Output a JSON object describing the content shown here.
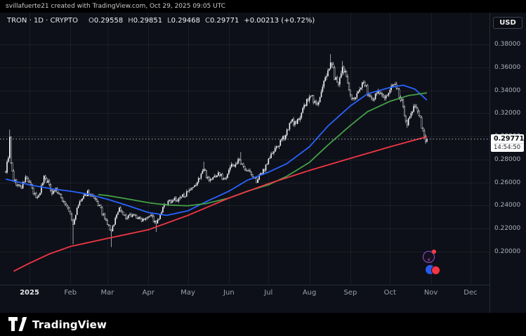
{
  "attribution": {
    "text": "svillafuerte21 created with TradingView.com, Oct 29, 2025 09:05 UTC"
  },
  "legend": {
    "symbol_text": "TRON · 1D · CRYPTO",
    "o_label": "O",
    "o_value": "0.29558",
    "h_label": "H",
    "h_value": "0.29851",
    "l_label": "L",
    "l_value": "0.29468",
    "c_label": "C",
    "c_value": "0.29771",
    "change_text": "+0.00213 (+0.72%)"
  },
  "currency_badge": "USD",
  "price_badge": {
    "price": "0.29771",
    "countdown": "14:54:50"
  },
  "logo": {
    "brand": "TradingView"
  },
  "colors": {
    "page_background": "#000000",
    "chart_background": "#0d1018",
    "axis_text": "#aeb2bc",
    "grid": "rgba(255,255,255,0.06)",
    "ma_fast": "#2962ff",
    "ma_medium": "#43a047",
    "ma_slow": "#f23645"
  },
  "chart_data": {
    "type": "candlestick",
    "symbol": "TRON",
    "interval": "1D",
    "market": "CRYPTO",
    "ylim": [
      0.2,
      0.38
    ],
    "last_price": 0.29771,
    "last_candle": {
      "open": 0.29558,
      "high": 0.29851,
      "low": 0.29468,
      "close": 0.29771
    },
    "days": 320,
    "jan1_index": 18,
    "price_ticks": [
      "0.38000",
      "0.36000",
      "0.34000",
      "0.32000",
      "0.30000",
      "0.28000",
      "0.26000",
      "0.24000",
      "0.22000",
      "0.20000"
    ],
    "time_ticks": [
      {
        "label": "2025",
        "day": 18,
        "year": true
      },
      {
        "label": "Feb",
        "day": 49
      },
      {
        "label": "Mar",
        "day": 77
      },
      {
        "label": "Apr",
        "day": 108
      },
      {
        "label": "May",
        "day": 138
      },
      {
        "label": "Jun",
        "day": 169
      },
      {
        "label": "Jul",
        "day": 199
      },
      {
        "label": "Aug",
        "day": 230
      },
      {
        "label": "Sep",
        "day": 261
      },
      {
        "label": "Oct",
        "day": 291
      },
      {
        "label": "Nov",
        "day": 322
      },
      {
        "label": "Dec",
        "day": 352
      }
    ],
    "up_color": "#f3f5f8",
    "down_color": "#0c0f16",
    "down_outline": "rgba(232,234,238,0.82)",
    "wick_color": "#d8dbdf",
    "last_price_line_color": "rgba(206,210,216,0.85)",
    "price_path_anchors": [
      [
        0,
        0.27
      ],
      [
        2,
        0.283
      ],
      [
        3,
        0.298
      ],
      [
        4,
        0.276
      ],
      [
        6,
        0.262
      ],
      [
        9,
        0.2575
      ],
      [
        12,
        0.256
      ],
      [
        15,
        0.264
      ],
      [
        18,
        0.26
      ],
      [
        21,
        0.2505
      ],
      [
        24,
        0.2465
      ],
      [
        27,
        0.256
      ],
      [
        29,
        0.2655
      ],
      [
        32,
        0.26
      ],
      [
        35,
        0.252
      ],
      [
        38,
        0.2545
      ],
      [
        41,
        0.248
      ],
      [
        45,
        0.242
      ],
      [
        49,
        0.232
      ],
      [
        51,
        0.223
      ],
      [
        53,
        0.233
      ],
      [
        56,
        0.243
      ],
      [
        59,
        0.2465
      ],
      [
        62,
        0.252
      ],
      [
        65,
        0.248
      ],
      [
        68,
        0.244
      ],
      [
        71,
        0.2395
      ],
      [
        75,
        0.228
      ],
      [
        78,
        0.222
      ],
      [
        80,
        0.217
      ],
      [
        83,
        0.229
      ],
      [
        86,
        0.238
      ],
      [
        89,
        0.233
      ],
      [
        91,
        0.228
      ],
      [
        94,
        0.231
      ],
      [
        96,
        0.233
      ],
      [
        99,
        0.23
      ],
      [
        102,
        0.228
      ],
      [
        104,
        0.2285
      ],
      [
        107,
        0.231
      ],
      [
        110,
        0.2325
      ],
      [
        112,
        0.227
      ],
      [
        114,
        0.224
      ],
      [
        117,
        0.231
      ],
      [
        120,
        0.24
      ],
      [
        123,
        0.2425
      ],
      [
        127,
        0.2455
      ],
      [
        130,
        0.244
      ],
      [
        134,
        0.2485
      ],
      [
        137,
        0.2505
      ],
      [
        140,
        0.2525
      ],
      [
        143,
        0.256
      ],
      [
        146,
        0.2625
      ],
      [
        148,
        0.268
      ],
      [
        150,
        0.2715
      ],
      [
        152,
        0.266
      ],
      [
        155,
        0.262
      ],
      [
        158,
        0.265
      ],
      [
        161,
        0.268
      ],
      [
        164,
        0.2645
      ],
      [
        166,
        0.2625
      ],
      [
        169,
        0.2725
      ],
      [
        171,
        0.274
      ],
      [
        174,
        0.276
      ],
      [
        176,
        0.279
      ],
      [
        179,
        0.2745
      ],
      [
        183,
        0.2715
      ],
      [
        186,
        0.2665
      ],
      [
        190,
        0.2615
      ],
      [
        193,
        0.2665
      ],
      [
        196,
        0.2725
      ],
      [
        199,
        0.28
      ],
      [
        201,
        0.284
      ],
      [
        204,
        0.288
      ],
      [
        206,
        0.292
      ],
      [
        209,
        0.296
      ],
      [
        211,
        0.3
      ],
      [
        214,
        0.308
      ],
      [
        217,
        0.3135
      ],
      [
        220,
        0.31
      ],
      [
        222,
        0.316
      ],
      [
        225,
        0.324
      ],
      [
        227,
        0.328
      ],
      [
        230,
        0.334
      ],
      [
        232,
        0.3345
      ],
      [
        234,
        0.329
      ],
      [
        236,
        0.328
      ],
      [
        238,
        0.333
      ],
      [
        240,
        0.342
      ],
      [
        242,
        0.35
      ],
      [
        244,
        0.358
      ],
      [
        246,
        0.365
      ],
      [
        248,
        0.358
      ],
      [
        249,
        0.352
      ],
      [
        251,
        0.348
      ],
      [
        252,
        0.3445
      ],
      [
        254,
        0.352
      ],
      [
        255,
        0.358
      ],
      [
        257,
        0.355
      ],
      [
        258,
        0.352
      ],
      [
        260,
        0.343
      ],
      [
        261,
        0.336
      ],
      [
        263,
        0.332
      ],
      [
        264,
        0.3305
      ],
      [
        266,
        0.336
      ],
      [
        268,
        0.342
      ],
      [
        271,
        0.348
      ],
      [
        273,
        0.342
      ],
      [
        274,
        0.338
      ],
      [
        276,
        0.335
      ],
      [
        278,
        0.3335
      ],
      [
        280,
        0.336
      ],
      [
        282,
        0.339
      ],
      [
        284,
        0.336
      ],
      [
        286,
        0.3335
      ],
      [
        288,
        0.336
      ],
      [
        290,
        0.338
      ],
      [
        293,
        0.344
      ],
      [
        296,
        0.342
      ],
      [
        298,
        0.336
      ],
      [
        300,
        0.33
      ],
      [
        302,
        0.318
      ],
      [
        304,
        0.312
      ],
      [
        306,
        0.316
      ],
      [
        308,
        0.324
      ],
      [
        310,
        0.328
      ],
      [
        312,
        0.322
      ],
      [
        314,
        0.314
      ],
      [
        315,
        0.308
      ],
      [
        317,
        0.302
      ],
      [
        318,
        0.2956
      ],
      [
        319,
        0.29771
      ]
    ],
    "wick_extremes": [
      {
        "day": 3,
        "high": 0.306
      },
      {
        "day": 51,
        "low": 0.2065
      },
      {
        "day": 80,
        "low": 0.204
      },
      {
        "day": 114,
        "low": 0.217
      },
      {
        "day": 150,
        "high": 0.278
      },
      {
        "day": 178,
        "high": 0.2865
      },
      {
        "day": 246,
        "high": 0.3715
      },
      {
        "day": 255,
        "high": 0.3655
      },
      {
        "day": 304,
        "low": 0.3075
      }
    ],
    "moving_averages": [
      {
        "name": "ma-fast",
        "color": "#2962ff",
        "anchors": [
          [
            0,
            0.263
          ],
          [
            18,
            0.258
          ],
          [
            35,
            0.2545
          ],
          [
            49,
            0.2525
          ],
          [
            62,
            0.25
          ],
          [
            77,
            0.2455
          ],
          [
            91,
            0.2405
          ],
          [
            108,
            0.234
          ],
          [
            122,
            0.2315
          ],
          [
            138,
            0.2355
          ],
          [
            152,
            0.2435
          ],
          [
            169,
            0.2525
          ],
          [
            183,
            0.262
          ],
          [
            199,
            0.269
          ],
          [
            213,
            0.2765
          ],
          [
            230,
            0.291
          ],
          [
            244,
            0.309
          ],
          [
            261,
            0.3265
          ],
          [
            274,
            0.337
          ],
          [
            291,
            0.3425
          ],
          [
            301,
            0.3445
          ],
          [
            310,
            0.341
          ],
          [
            319,
            0.3315
          ]
        ]
      },
      {
        "name": "ma-medium",
        "color": "#43a047",
        "anchors": [
          [
            70,
            0.2495
          ],
          [
            77,
            0.2487
          ],
          [
            91,
            0.246
          ],
          [
            108,
            0.2425
          ],
          [
            122,
            0.2405
          ],
          [
            138,
            0.2398
          ],
          [
            152,
            0.2418
          ],
          [
            169,
            0.2465
          ],
          [
            183,
            0.2525
          ],
          [
            199,
            0.258
          ],
          [
            213,
            0.2655
          ],
          [
            230,
            0.2775
          ],
          [
            244,
            0.2925
          ],
          [
            261,
            0.3095
          ],
          [
            274,
            0.3215
          ],
          [
            291,
            0.3305
          ],
          [
            305,
            0.3355
          ],
          [
            319,
            0.3378
          ]
        ]
      },
      {
        "name": "ma-slow",
        "color": "#f23645",
        "anchors": [
          [
            6,
            0.183
          ],
          [
            18,
            0.19
          ],
          [
            33,
            0.198
          ],
          [
            49,
            0.2045
          ],
          [
            77,
            0.2115
          ],
          [
            108,
            0.219
          ],
          [
            138,
            0.2315
          ],
          [
            169,
            0.2465
          ],
          [
            199,
            0.259
          ],
          [
            230,
            0.2705
          ],
          [
            261,
            0.281
          ],
          [
            291,
            0.291
          ],
          [
            319,
            0.2998
          ]
        ]
      }
    ],
    "grid": true
  }
}
